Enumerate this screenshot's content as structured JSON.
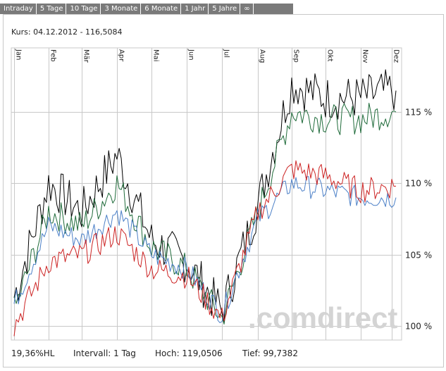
{
  "tabs": [
    "Intraday",
    "5 Tage",
    "10 Tage",
    "3 Monate",
    "6 Monate",
    "1 Jahr",
    "5 Jahre",
    "∞"
  ],
  "header": {
    "kurs": "Kurs: 04.12.2012 - 116,5084"
  },
  "watermark": ".comdirect",
  "footer": {
    "hl": "19,36%HL",
    "intervall": "Intervall: 1 Tag",
    "hoch": "Hoch: 119,0506",
    "tief": "Tief: 99,7382"
  },
  "colors": {
    "tab_bg": "#7a7a7a",
    "grid": "#c8c8c8",
    "black_series": "#000000",
    "green_series": "#1f6b3a",
    "blue_series": "#4a7fc7",
    "red_series": "#cc2222"
  },
  "chart_data": {
    "type": "line",
    "x": [
      "Jan",
      "Feb",
      "Mär",
      "Apr",
      "Mai",
      "Jun",
      "Jul",
      "Aug",
      "Sep",
      "Okt",
      "Nov",
      "Dez"
    ],
    "yticks": [
      "100 %",
      "105 %",
      "110 %",
      "115 %"
    ],
    "ylim": [
      99.0,
      119.5
    ],
    "grid": true,
    "series": [
      {
        "color": "#000000",
        "values": [
          102,
          110,
          108,
          112,
          106,
          104.5,
          101,
          108.5,
          117,
          116,
          116,
          116.5
        ]
      },
      {
        "color": "#1f6b3a",
        "values": [
          101,
          108,
          107,
          110,
          105.5,
          104,
          100.5,
          108,
          115,
          114.5,
          114.5,
          115
        ]
      },
      {
        "color": "#4a7fc7",
        "values": [
          101.5,
          107,
          106,
          108,
          105,
          104,
          100.8,
          107.5,
          110,
          109.5,
          109,
          109
        ]
      },
      {
        "color": "#cc2222",
        "values": [
          100,
          104.5,
          105,
          106.5,
          104,
          103.5,
          100.5,
          108,
          111,
          110.5,
          109.5,
          109.8
        ]
      }
    ]
  }
}
